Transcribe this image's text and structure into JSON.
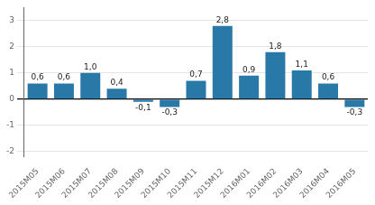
{
  "chart_data": {
    "type": "bar",
    "categories": [
      "2015M05",
      "2015M06",
      "2015M07",
      "2015M08",
      "2015M09",
      "2015M10",
      "2015M11",
      "2015M12",
      "2016M01",
      "2016M02",
      "2016M03",
      "2016M04",
      "2016M05"
    ],
    "values": [
      0.6,
      0.6,
      1.0,
      0.4,
      -0.1,
      -0.3,
      0.7,
      2.8,
      0.9,
      1.8,
      1.1,
      0.6,
      -0.3
    ],
    "value_labels": [
      "0,6",
      "0,6",
      "1,0",
      "0,4",
      "-0,1",
      "-0,3",
      "0,7",
      "2,8",
      "0,9",
      "1,8",
      "1,1",
      "0,6",
      "-0,3"
    ],
    "color": "#2878a8",
    "ylim": [
      -2.2,
      3.5
    ],
    "yticks": [
      -2,
      -1,
      0,
      1,
      2,
      3
    ],
    "grid": true,
    "data_labels": true
  }
}
